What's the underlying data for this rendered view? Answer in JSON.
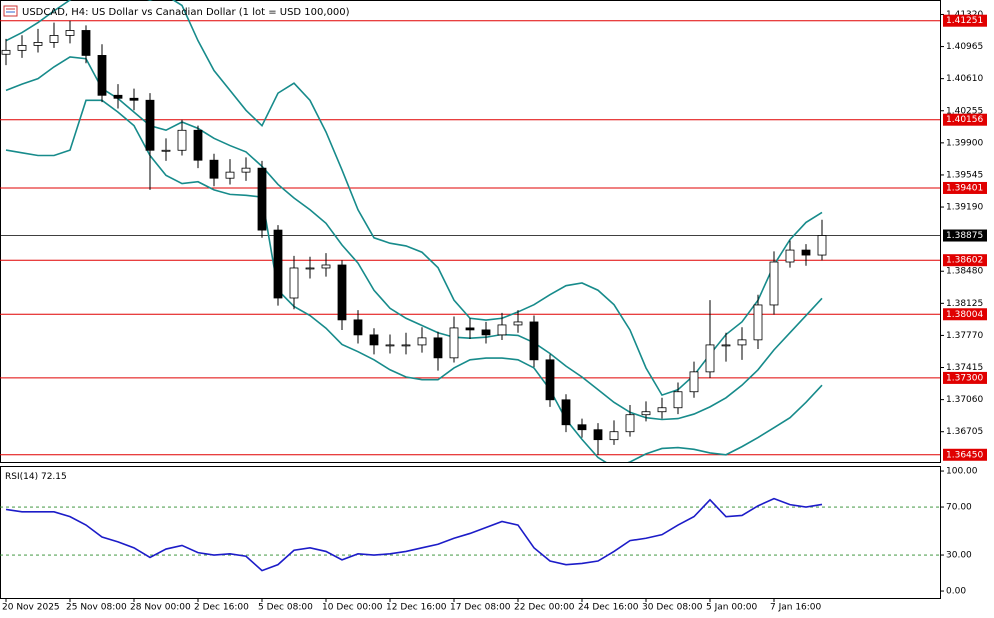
{
  "chart_data": [
    {
      "type": "candlestick",
      "title": "USDCAD, H4: US Dollar vs Canadian Dollar (1 lot = USD 100,000)",
      "categories": [
        "20 Nov 2025",
        null,
        null,
        null,
        "25 Nov 08:00",
        null,
        null,
        null,
        "28 Nov 00:00",
        null,
        null,
        null,
        "2 Dec 16:00",
        null,
        null,
        null,
        "5 Dec 08:00",
        null,
        null,
        null,
        "10 Dec 00:00",
        null,
        null,
        null,
        "12 Dec 16:00",
        null,
        null,
        null,
        "17 Dec 08:00",
        null,
        null,
        null,
        "22 Dec 00:00",
        null,
        null,
        null,
        "24 Dec 16:00",
        null,
        null,
        null,
        "30 Dec 08:00",
        null,
        null,
        null,
        "5 Jan 00:00",
        null,
        null,
        null,
        "7 Jan 16:00",
        null,
        null,
        null
      ],
      "open": [
        1.4088,
        1.40923,
        1.40978,
        1.41011,
        1.41088,
        1.41143,
        1.40867,
        1.40426,
        1.40393,
        1.40371,
        1.39818,
        1.39818,
        1.40039,
        1.39708,
        1.39509,
        1.39576,
        1.3962,
        1.38935,
        1.38184,
        1.38516,
        1.38516,
        1.38549,
        1.37942,
        1.37776,
        1.37665,
        1.37665,
        1.37665,
        1.37743,
        1.37522,
        1.37853,
        1.37831,
        1.37776,
        1.37886,
        1.37919,
        1.375,
        1.37058,
        1.36782,
        1.36727,
        1.36617,
        1.36705,
        1.36893,
        1.36926,
        1.3697,
        1.37147,
        1.37367,
        1.37665,
        1.37665,
        1.37721,
        1.38107,
        1.38582,
        1.38714,
        1.38659
      ],
      "high": [
        1.4105,
        1.4109,
        1.4116,
        1.4123,
        1.41251,
        1.412,
        1.4099,
        1.4055,
        1.405,
        1.4045,
        1.3995,
        1.40156,
        1.4009,
        1.3978,
        1.3972,
        1.3974,
        1.397,
        1.3899,
        1.3865,
        1.3864,
        1.3868,
        1.38602,
        1.3805,
        1.3785,
        1.3778,
        1.378,
        1.3786,
        1.3781,
        1.3798,
        1.3796,
        1.3792,
        1.3802,
        1.3805,
        1.3799,
        1.3756,
        1.3712,
        1.3685,
        1.368,
        1.3683,
        1.37,
        1.3704,
        1.3708,
        1.3725,
        1.3748,
        1.3816,
        1.378,
        1.3786,
        1.3822,
        1.387,
        1.3882,
        1.3878,
        1.3905
      ],
      "low": [
        1.4076,
        1.4084,
        1.409,
        1.4095,
        1.41,
        1.4078,
        1.4035,
        1.4028,
        1.4026,
        1.3938,
        1.397,
        1.3976,
        1.3962,
        1.3942,
        1.3944,
        1.3948,
        1.3885,
        1.381,
        1.3806,
        1.384,
        1.3842,
        1.3783,
        1.3768,
        1.3756,
        1.3757,
        1.3756,
        1.3758,
        1.3738,
        1.3747,
        1.3773,
        1.3768,
        1.3772,
        1.378,
        1.3742,
        1.3698,
        1.367,
        1.3664,
        1.3645,
        1.3656,
        1.3665,
        1.3682,
        1.3685,
        1.369,
        1.3708,
        1.373,
        1.3748,
        1.375,
        1.3762,
        1.38,
        1.3852,
        1.3854,
        1.386
      ],
      "close": [
        1.40923,
        1.40978,
        1.41011,
        1.41088,
        1.41143,
        1.40867,
        1.40426,
        1.40393,
        1.40371,
        1.39818,
        1.39818,
        1.40039,
        1.39708,
        1.39509,
        1.39576,
        1.3962,
        1.38935,
        1.38184,
        1.38516,
        1.38516,
        1.38549,
        1.37942,
        1.37776,
        1.37665,
        1.37665,
        1.37665,
        1.37743,
        1.37522,
        1.37853,
        1.37831,
        1.37776,
        1.37886,
        1.37919,
        1.375,
        1.37058,
        1.36782,
        1.36727,
        1.36617,
        1.36705,
        1.36893,
        1.36926,
        1.3697,
        1.37147,
        1.37367,
        1.37665,
        1.37665,
        1.37721,
        1.38107,
        1.38582,
        1.38714,
        1.38659,
        1.38875
      ],
      "up_color": "#ffffff",
      "down_color": "#000000",
      "series": [
        {
          "color": "#178b8b",
          "values": [
            1.4103,
            1.4112,
            1.4123,
            1.4136,
            1.4148,
            1.4159,
            1.4164,
            1.4159,
            1.4153,
            1.4148,
            1.4153,
            1.4142,
            1.4103,
            1.407,
            1.4048,
            1.4026,
            1.4009,
            1.4045,
            1.4056,
            1.4037,
            1.4002,
            1.396,
            1.3916,
            1.3885,
            1.3879,
            1.3876,
            1.3869,
            1.3852,
            1.3816,
            1.3796,
            1.3794,
            1.3796,
            1.3803,
            1.3811,
            1.3822,
            1.3832,
            1.3835,
            1.3827,
            1.3811,
            1.3783,
            1.3741,
            1.3711,
            1.3717,
            1.3733,
            1.3756,
            1.3778,
            1.3792,
            1.3816,
            1.3855,
            1.3883,
            1.3902,
            1.3913
          ]
        },
        {
          "color": "#178b8b",
          "values": [
            1.4048,
            1.4055,
            1.4061,
            1.4074,
            1.4085,
            1.4083,
            1.405,
            1.4039,
            1.4024,
            1.4009,
            1.4004,
            1.4013,
            1.4006,
            1.3995,
            1.3987,
            1.398,
            1.3964,
            1.3944,
            1.3929,
            1.3916,
            1.3901,
            1.3877,
            1.3857,
            1.3827,
            1.3807,
            1.3796,
            1.3788,
            1.378,
            1.3775,
            1.3774,
            1.3775,
            1.3778,
            1.3777,
            1.3769,
            1.3757,
            1.3743,
            1.3731,
            1.3717,
            1.3703,
            1.3692,
            1.3686,
            1.3684,
            1.3685,
            1.369,
            1.3698,
            1.3708,
            1.3722,
            1.3739,
            1.3761,
            1.378,
            1.3799,
            1.3818
          ]
        },
        {
          "color": "#178b8b",
          "values": [
            1.3982,
            1.3979,
            1.3976,
            1.3976,
            1.3982,
            1.4037,
            1.4037,
            1.4024,
            1.4009,
            1.3976,
            1.3954,
            1.3945,
            1.3947,
            1.3938,
            1.3933,
            1.3932,
            1.393,
            1.3827,
            1.3809,
            1.3799,
            1.3785,
            1.3767,
            1.3759,
            1.375,
            1.3739,
            1.3731,
            1.3728,
            1.3728,
            1.3741,
            1.375,
            1.3752,
            1.3752,
            1.375,
            1.3741,
            1.3717,
            1.3684,
            1.3662,
            1.3642,
            1.3631,
            1.3637,
            1.3646,
            1.3652,
            1.3653,
            1.3651,
            1.3647,
            1.3645,
            1.3654,
            1.3664,
            1.3675,
            1.3686,
            1.3703,
            1.3722
          ]
        }
      ],
      "ylim": [
        1.3637,
        1.4148
      ],
      "yticks": [
        {
          "value": 1.4132,
          "label": "1.41320"
        },
        1.40965,
        {
          "value": 1.4061,
          "label": "1.40610"
        },
        1.40255,
        {
          "value": 1.399,
          "label": "1.39900"
        },
        1.39545,
        {
          "value": 1.3919,
          "label": "1.39190"
        },
        {
          "value": 1.3848,
          "label": "1.38480"
        },
        1.38125,
        {
          "value": 1.3777,
          "label": "1.37770"
        },
        1.37415,
        {
          "value": 1.3706,
          "label": "1.37060"
        },
        1.36705
      ],
      "levels": [
        {
          "value": 1.41251,
          "label": "1.41251"
        },
        {
          "value": 1.40156,
          "label": "1.40156"
        },
        {
          "value": 1.39401,
          "label": "1.39401"
        },
        {
          "value": 1.38602,
          "label": "1.38602"
        },
        {
          "value": 1.38004,
          "label": "1.38004"
        },
        {
          "value": 1.373,
          "label": "1.37300"
        },
        {
          "value": 1.3645,
          "label": "1.36450"
        }
      ],
      "level_color": "#e00000",
      "last_price": {
        "value": 1.38875,
        "label": "1.38875"
      }
    },
    {
      "type": "line",
      "title": "RSI(14)",
      "series": [
        {
          "color": "#1c1cc8",
          "values": [
            68,
            66,
            66,
            66,
            62,
            55,
            45,
            41,
            36,
            28,
            35,
            38,
            32,
            30,
            31,
            29,
            17,
            22,
            34,
            36,
            33,
            26,
            31,
            30,
            31,
            33,
            36,
            39,
            44,
            48,
            53,
            58,
            55,
            36,
            25,
            22,
            23,
            25,
            33,
            42,
            44,
            47,
            55,
            62,
            76,
            62,
            63,
            71,
            77,
            72,
            70,
            72.15
          ]
        }
      ],
      "ylim": [
        -5.8,
        104.2
      ],
      "yticks": [
        {
          "value": 100,
          "label": "100.00"
        },
        {
          "value": 70,
          "label": "70.00"
        },
        {
          "value": 30,
          "label": "30.00"
        },
        {
          "value": 0,
          "label": "0.00"
        }
      ],
      "levels": [
        70,
        30
      ]
    }
  ]
}
